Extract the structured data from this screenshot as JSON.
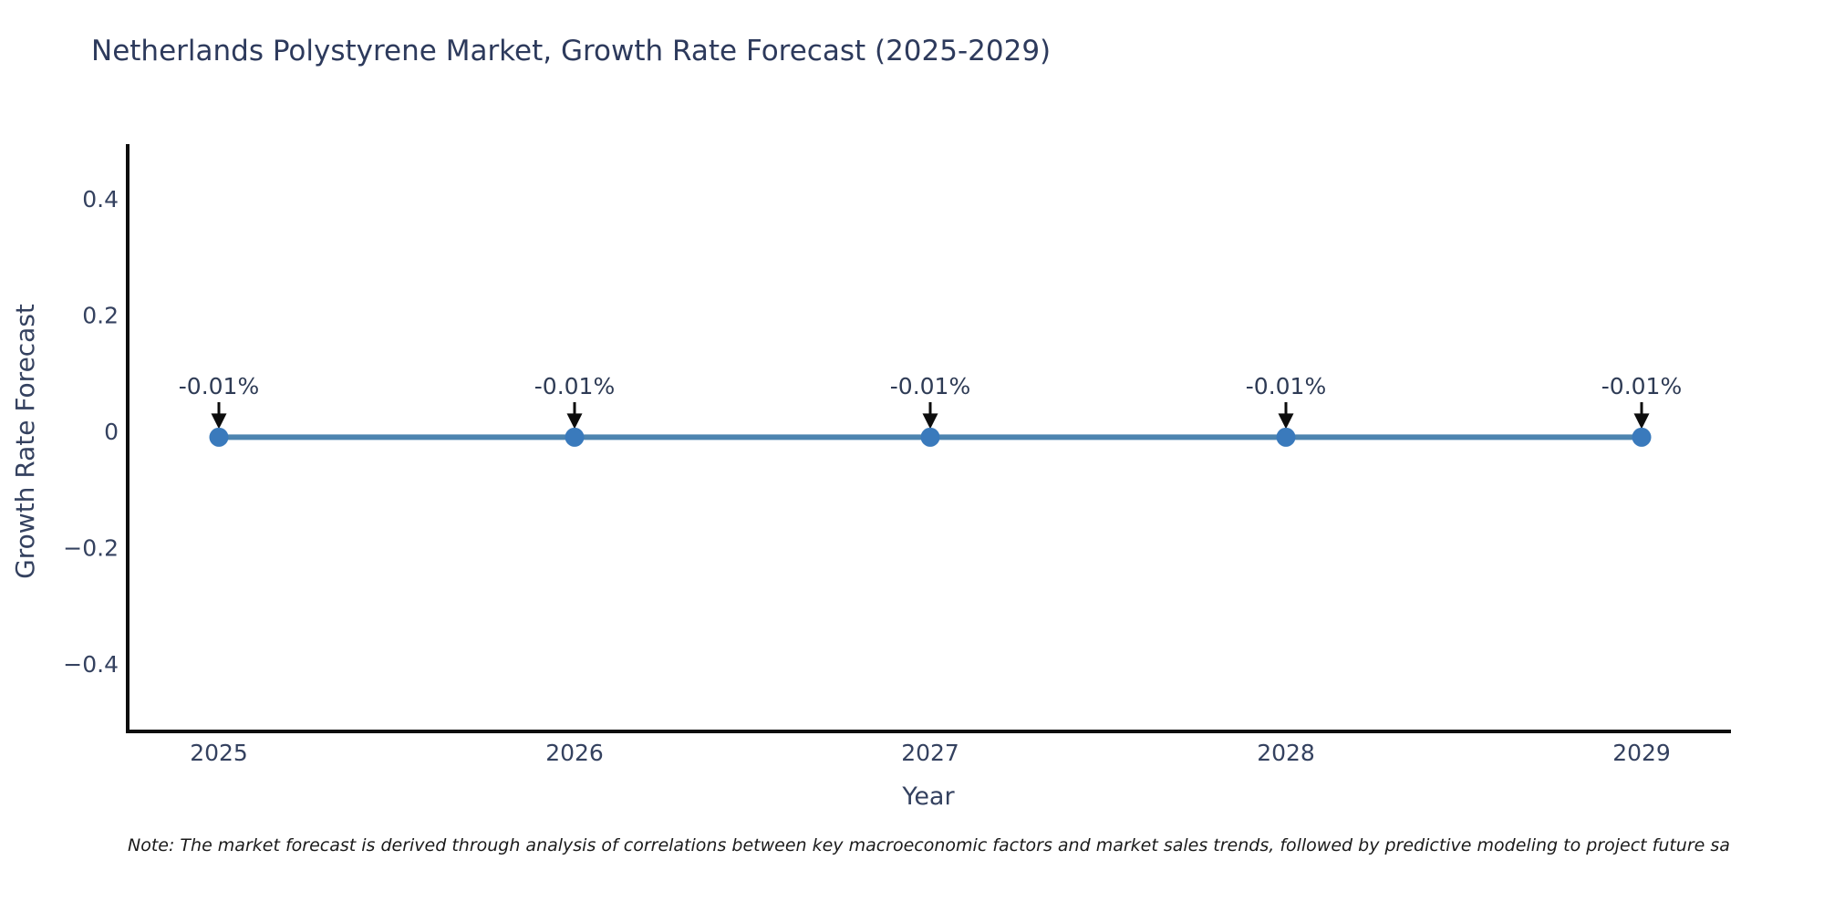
{
  "figure": {
    "title": "Netherlands Polystyrene Market, Growth Rate Forecast (2025-2029)",
    "note": "Note: The market forecast is derived through analysis of correlations between key macroeconomic factors and market sales trends, followed by predictive modeling to project future sa"
  },
  "chart_data": {
    "type": "line",
    "title": "Netherlands Polystyrene Market, Growth Rate Forecast (2025-2029)",
    "xlabel": "Year",
    "ylabel": "Growth Rate Forecast",
    "x": [
      2025,
      2026,
      2027,
      2028,
      2029
    ],
    "x_tick_labels": [
      "2025",
      "2026",
      "2027",
      "2028",
      "2029"
    ],
    "series": [
      {
        "name": "Growth Rate Forecast (%)",
        "values": [
          -0.01,
          -0.01,
          -0.01,
          -0.01,
          -0.01
        ]
      }
    ],
    "point_labels": [
      "-0.01%",
      "-0.01%",
      "-0.01%",
      "-0.01%",
      "-0.01%"
    ],
    "y_ticks": [
      0.4,
      0.2,
      0,
      -0.2,
      -0.4
    ],
    "y_tick_labels": [
      "0.4",
      "0.2",
      "0",
      "−0.2",
      "−0.4"
    ],
    "ylim": [
      -0.52,
      0.49
    ],
    "xlim": [
      2024.74,
      2029.25
    ],
    "grid": false,
    "legend": "none",
    "annotation_style": "black downward arrows from labels to markers",
    "colors": {
      "line": "#4d84b0",
      "marker": "#3a7abc",
      "arrow": "#0d0d0d",
      "axis_spine": "#0d0d0d",
      "text": "#2e3b55",
      "note_text": "#1a1a1a",
      "background": "#ffffff"
    }
  }
}
